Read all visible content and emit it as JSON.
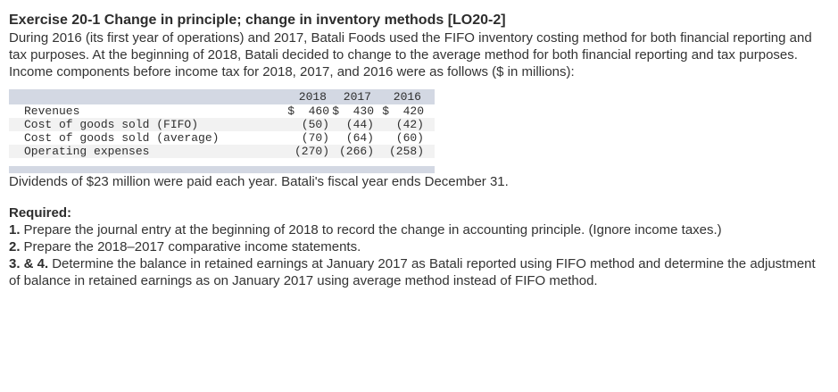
{
  "title": "Exercise 20-1 Change in principle; change in inventory methods [LO20-2]",
  "paragraphs": {
    "intro": "During 2016 (its first year of operations) and 2017, Batali Foods used the FIFO inventory costing method for both financial reporting and tax purposes. At the beginning of 2018, Batali decided to change to the average method for both financial reporting and tax purposes.",
    "income_components": "Income components before income tax for 2018, 2017, and 2016 were as follows ($ in millions):",
    "dividends": "Dividends of $23 million were paid each year. Batali's fiscal year ends December 31."
  },
  "table": {
    "years": [
      "2018",
      "2017",
      "2016"
    ],
    "rows": [
      {
        "label": "Revenues",
        "values": [
          "$  460",
          "$  430",
          "$  420"
        ]
      },
      {
        "label": "Cost of goods sold (FIFO)",
        "values": [
          "(50)",
          "(44)",
          "(42)"
        ]
      },
      {
        "label": "Cost of goods sold (average)",
        "values": [
          "(70)",
          "(64)",
          "(60)"
        ]
      },
      {
        "label": "Operating expenses",
        "values": [
          "(270)",
          "(266)",
          "(258)"
        ]
      }
    ]
  },
  "required": {
    "heading": "Required:",
    "items": [
      {
        "prefix": "1.",
        "text": "Prepare the journal entry at the beginning of 2018 to record the change in accounting principle. (Ignore income taxes.)"
      },
      {
        "prefix": "2.",
        "text": "Prepare the 2018–2017 comparative income statements."
      },
      {
        "prefix": "3. & 4.",
        "text": "Determine the balance in retained earnings at January 2017 as Batali reported using FIFO method and determine the adjustment of balance in retained earnings as on January 2017 using average method instead of FIFO method."
      }
    ]
  },
  "colors": {
    "band": "#d3d8e3",
    "row_alt": "#f2f2f2",
    "text": "#333333"
  }
}
